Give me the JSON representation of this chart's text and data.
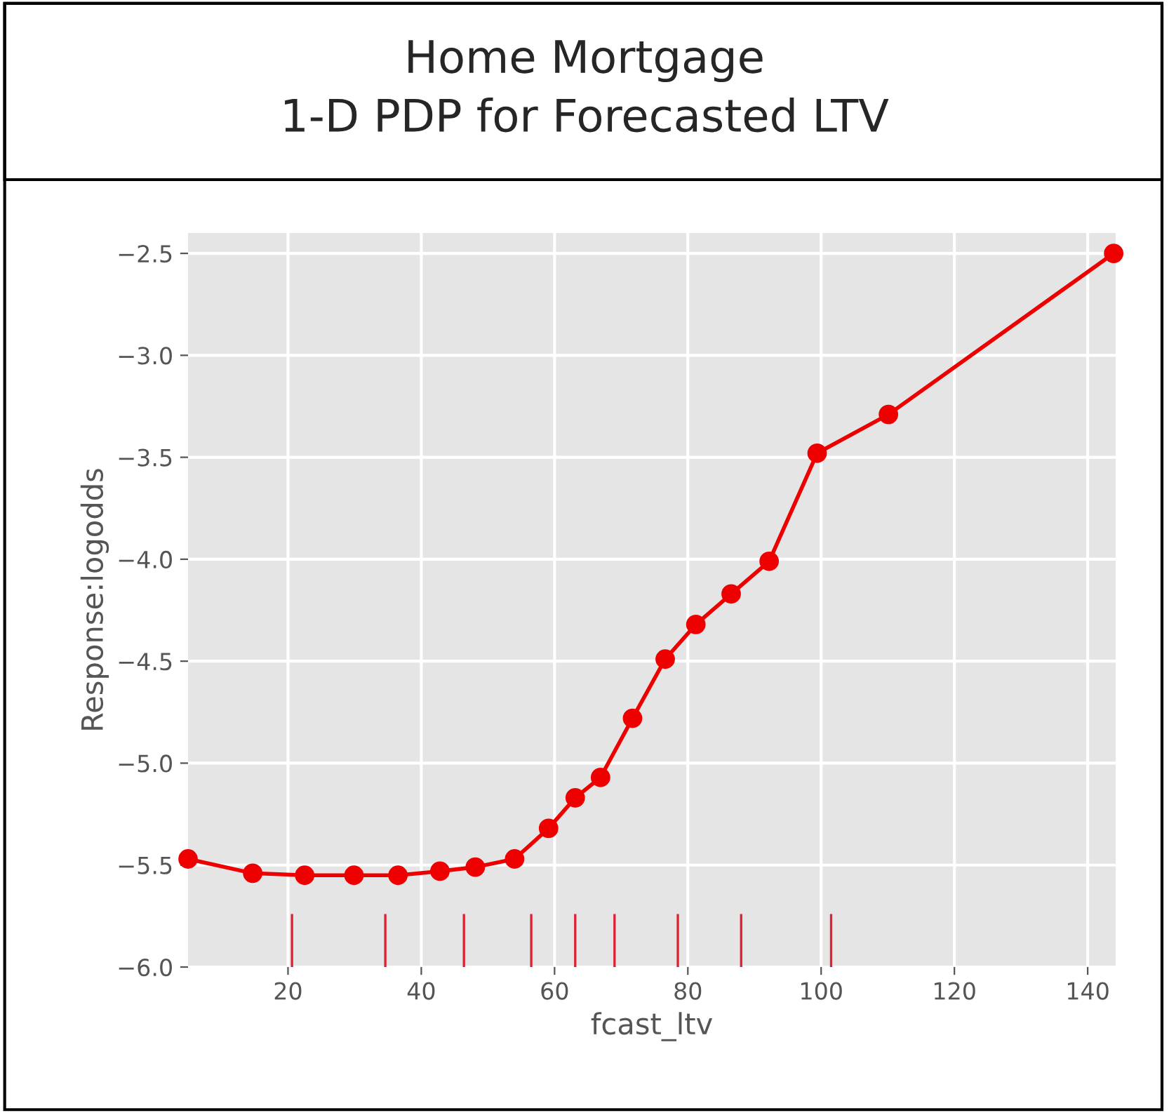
{
  "chart_data": {
    "type": "line",
    "title": "Home Mortgage\n1-D PDP for Forecasted LTV",
    "xlabel": "fcast_ltv",
    "ylabel": "Response:logodds",
    "series": [
      {
        "color": "#ee0000",
        "marker": "circle",
        "line_style": "solid",
        "x": [
          5,
          14.7,
          22.5,
          29.9,
          36.5,
          42.8,
          48.1,
          54,
          59.1,
          63.1,
          66.9,
          71.7,
          76.6,
          81.2,
          86.5,
          92.2,
          99.4,
          110.1,
          143.9
        ],
        "values": [
          -5.47,
          -5.54,
          -5.55,
          -5.55,
          -5.55,
          -5.53,
          -5.51,
          -5.47,
          -5.32,
          -5.17,
          -5.07,
          -4.78,
          -4.49,
          -4.32,
          -4.17,
          -4.01,
          -3.48,
          -3.29,
          -2.5
        ]
      },
      {
        "type": "bar",
        "color": "#dd2233",
        "x": [
          20.6,
          34.6,
          46.4,
          56.5,
          63.1,
          69.0,
          78.5,
          88.0,
          101.5
        ],
        "base": [
          -6.0,
          -6.0,
          -6.0,
          -6.0,
          -6.0,
          -6.0,
          -6.0,
          -6.0,
          -6.0
        ],
        "values": [
          0.26,
          0.26,
          0.26,
          0.26,
          0.26,
          0.26,
          0.26,
          0.26,
          0.26
        ]
      }
    ],
    "xlim": [
      5,
      144.2
    ],
    "ylim": [
      -6.0,
      -2.4
    ],
    "xticks": [
      20,
      40,
      60,
      80,
      100,
      120,
      140
    ],
    "yticks": [
      {
        "value": -6.0,
        "label": "−6.0"
      },
      {
        "value": -5.5,
        "label": "−5.5"
      },
      {
        "value": -5.0,
        "label": "−5.0"
      },
      {
        "value": -4.5,
        "label": "−4.5"
      },
      {
        "value": -4.0,
        "label": "−4.0"
      },
      {
        "value": -3.5,
        "label": "−3.5"
      },
      {
        "value": -3.0,
        "label": "−3.0"
      },
      {
        "value": -2.5,
        "label": "−2.5"
      }
    ],
    "grid": true
  }
}
